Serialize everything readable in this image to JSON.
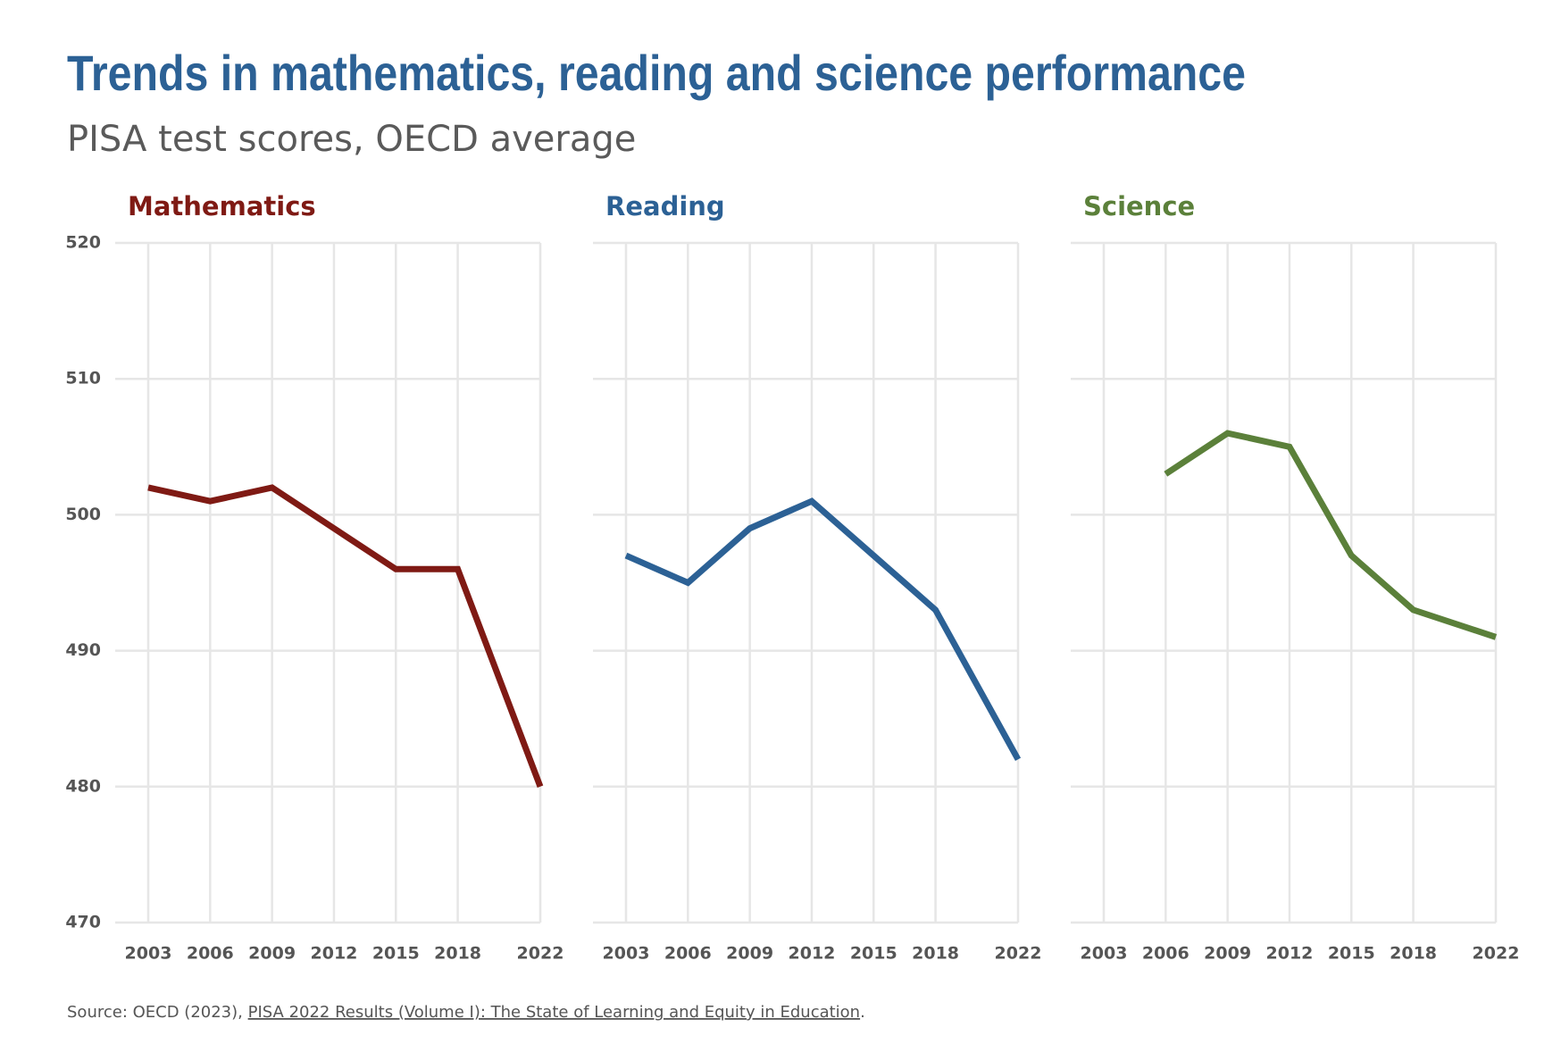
{
  "title": "Trends in mathematics, reading and science performance",
  "subtitle": "PISA test scores, OECD average",
  "source": {
    "prefix": "Source: OECD (2023), ",
    "link": "PISA 2022 Results (Volume I): The State of Learning and Equity in Education",
    "suffix": "."
  },
  "chart_data": [
    {
      "type": "line",
      "title": "Mathematics",
      "color": "#7f1a14",
      "x": [
        2003,
        2006,
        2009,
        2012,
        2015,
        2018,
        2022
      ],
      "values": [
        502,
        501,
        502,
        499,
        496,
        496,
        480
      ],
      "xlim": [
        2003,
        2022
      ],
      "xticks": [
        2003,
        2006,
        2009,
        2012,
        2015,
        2018,
        2022
      ],
      "ylim": [
        470,
        520
      ],
      "yticks": [
        470,
        480,
        490,
        500,
        510,
        520
      ],
      "grid": true
    },
    {
      "type": "line",
      "title": "Reading",
      "color": "#2c6195",
      "x": [
        2003,
        2006,
        2009,
        2012,
        2015,
        2018,
        2022
      ],
      "values": [
        497,
        495,
        499,
        501,
        497,
        493,
        482
      ],
      "xlim": [
        2003,
        2022
      ],
      "xticks": [
        2003,
        2006,
        2009,
        2012,
        2015,
        2018,
        2022
      ],
      "ylim": [
        470,
        520
      ],
      "yticks": [
        470,
        480,
        490,
        500,
        510,
        520
      ],
      "grid": true
    },
    {
      "type": "line",
      "title": "Science",
      "color": "#5b803a",
      "x": [
        2003,
        2006,
        2009,
        2012,
        2015,
        2018,
        2022
      ],
      "values": [
        null,
        503,
        506,
        505,
        497,
        493,
        491
      ],
      "xlim": [
        2003,
        2022
      ],
      "xticks": [
        2003,
        2006,
        2009,
        2012,
        2015,
        2018,
        2022
      ],
      "ylim": [
        470,
        520
      ],
      "yticks": [
        470,
        480,
        490,
        500,
        510,
        520
      ],
      "grid": true
    }
  ]
}
